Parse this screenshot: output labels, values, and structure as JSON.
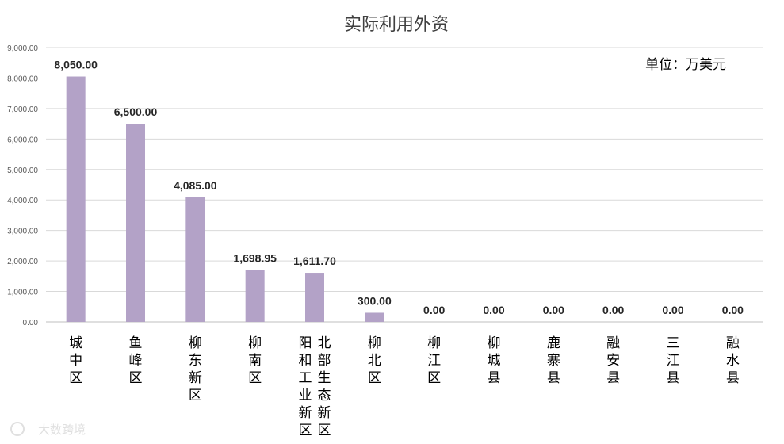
{
  "chart_data": {
    "type": "bar",
    "title": "实际利用外资",
    "unit_label": "单位：万美元",
    "categories": [
      "城中区",
      "鱼峰区",
      "柳东新区",
      "柳南区",
      "阳和工业新区 北部生态新区",
      "柳北区",
      "柳江区",
      "柳城县",
      "鹿寨县",
      "融安县",
      "三江县",
      "融水县"
    ],
    "category_columns": [
      [
        "城中区"
      ],
      [
        "鱼峰区"
      ],
      [
        "柳东新区"
      ],
      [
        "柳南区"
      ],
      [
        "阳和工业新区",
        "北部生态新区"
      ],
      [
        "柳北区"
      ],
      [
        "柳江区"
      ],
      [
        "柳城县"
      ],
      [
        "鹿寨县"
      ],
      [
        "融安县"
      ],
      [
        "三江县"
      ],
      [
        "融水县"
      ]
    ],
    "values": [
      8050.0,
      6500.0,
      4085.0,
      1698.95,
      1611.7,
      300.0,
      0.0,
      0.0,
      0.0,
      0.0,
      0.0,
      0.0
    ],
    "data_labels": [
      "8,050.00",
      "6,500.00",
      "4,085.00",
      "1,698.95",
      "1,611.70",
      "300.00",
      "0.00",
      "0.00",
      "0.00",
      "0.00",
      "0.00",
      "0.00"
    ],
    "yticks": [
      0,
      1000,
      2000,
      3000,
      4000,
      5000,
      6000,
      7000,
      8000,
      9000
    ],
    "ytick_labels": [
      "0.00",
      "1,000.00",
      "2,000.00",
      "3,000.00",
      "4,000.00",
      "5,000.00",
      "6,000.00",
      "7,000.00",
      "8,000.00",
      "9,000.00"
    ],
    "ylim": [
      0,
      9000
    ],
    "grid": true,
    "bar_color": "#b3a2c7",
    "xlabel": "",
    "ylabel": ""
  },
  "watermark": "大数跨境"
}
